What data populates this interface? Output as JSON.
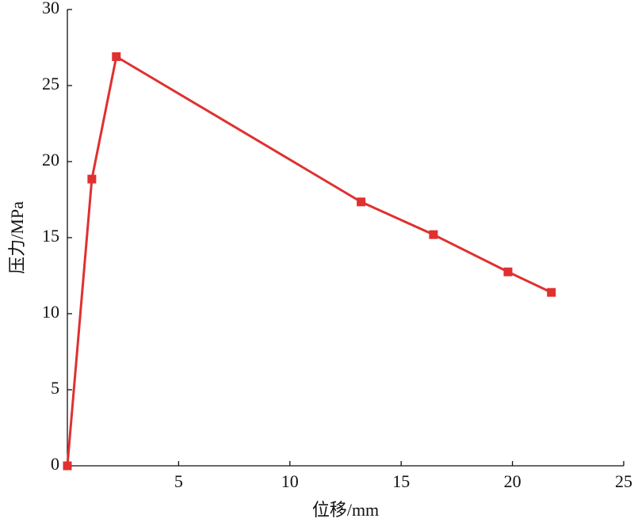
{
  "chart_data": {
    "type": "line",
    "x_label": "位移/mm",
    "y_label": "压力/MPa",
    "series": [
      {
        "color": "#e03030",
        "x": [
          0,
          1.1,
          2.2,
          13.2,
          16.45,
          19.8,
          21.75
        ],
        "values": [
          0,
          18.85,
          26.9,
          17.35,
          15.2,
          12.75,
          11.4
        ]
      }
    ],
    "xlim": [
      0,
      25
    ],
    "xticks": [
      5,
      10,
      15,
      20,
      25
    ],
    "ylim": [
      0,
      30
    ],
    "yticks": [
      0,
      5,
      10,
      15,
      20,
      25,
      30
    ],
    "grid": false
  }
}
